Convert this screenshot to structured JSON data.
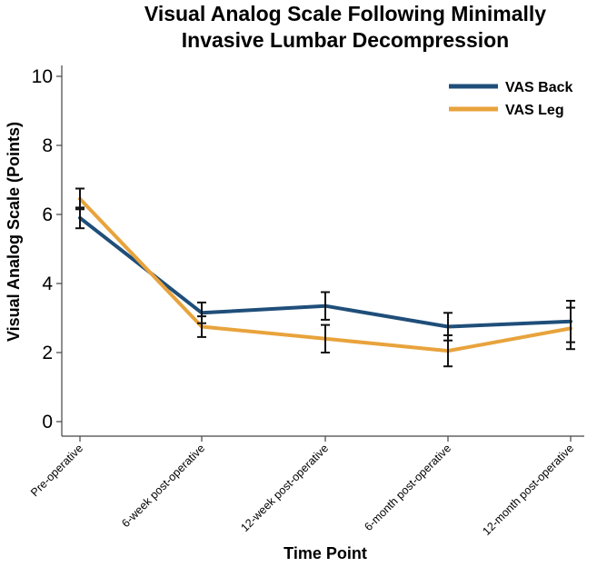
{
  "chart_data": {
    "type": "line",
    "title_lines": [
      "Visual Analog Scale Following Minimally",
      "Invasive Lumbar Decompression"
    ],
    "xlabel": "Time Point",
    "ylabel": "Visual Analog Scale (Points)",
    "categories": [
      "Pre-operative",
      "6-week post-operative",
      "12-week post-operative",
      "6-month post-operative",
      "12-month post-operative"
    ],
    "ylim": [
      0,
      10
    ],
    "yticks": [
      0,
      2,
      4,
      6,
      8,
      10
    ],
    "grid": false,
    "legend_position": "top-right",
    "series": [
      {
        "name": "VAS Back",
        "color": "#1f4e79",
        "values": [
          5.9,
          3.15,
          3.35,
          2.75,
          2.9
        ],
        "error": [
          0.3,
          0.3,
          0.4,
          0.4,
          0.6
        ]
      },
      {
        "name": "VAS Leg",
        "color": "#e8a33c",
        "values": [
          6.45,
          2.75,
          2.4,
          2.05,
          2.7
        ],
        "error": [
          0.3,
          0.3,
          0.4,
          0.45,
          0.6
        ]
      }
    ]
  }
}
